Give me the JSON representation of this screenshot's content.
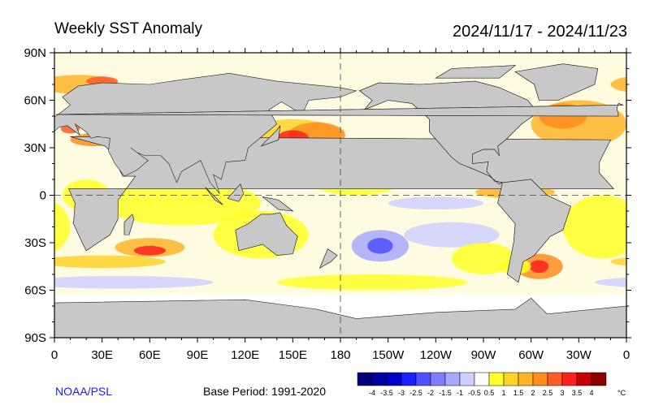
{
  "title": "Weekly SST Anomaly",
  "date_range": "2024/11/17 - 2024/11/23",
  "credit": "NOAA/PSL",
  "base_period": "Base Period: 1991-2020",
  "map": {
    "projection": "equirectangular",
    "lon_labels": [
      "0",
      "30E",
      "60E",
      "90E",
      "120E",
      "150E",
      "180",
      "150W",
      "120W",
      "90W",
      "60W",
      "30W",
      "0"
    ],
    "lat_labels": [
      "90N",
      "60N",
      "30N",
      "0",
      "30S",
      "60S",
      "90S"
    ],
    "land_color": "#c8c8c8",
    "dashed_reference_lines": [
      "equator",
      "180 meridian"
    ]
  },
  "colorbar": {
    "unit": "°C",
    "labels": [
      "-4",
      "-3.5",
      "-3",
      "-2.5",
      "-2",
      "-1.5",
      "-1",
      "-0.5",
      "0.5",
      "1",
      "1.5",
      "2",
      "2.5",
      "3",
      "3.5",
      "4"
    ],
    "colors": [
      "#00007a",
      "#0000a0",
      "#0000cd",
      "#1e1eff",
      "#5050ff",
      "#7d7dff",
      "#a8a8ff",
      "#d0d0ff",
      "#ffffff",
      "#ffff28",
      "#ffd228",
      "#ffb428",
      "#ff8c1e",
      "#ff5a28",
      "#ff2020",
      "#c80000",
      "#8c0000"
    ]
  }
}
